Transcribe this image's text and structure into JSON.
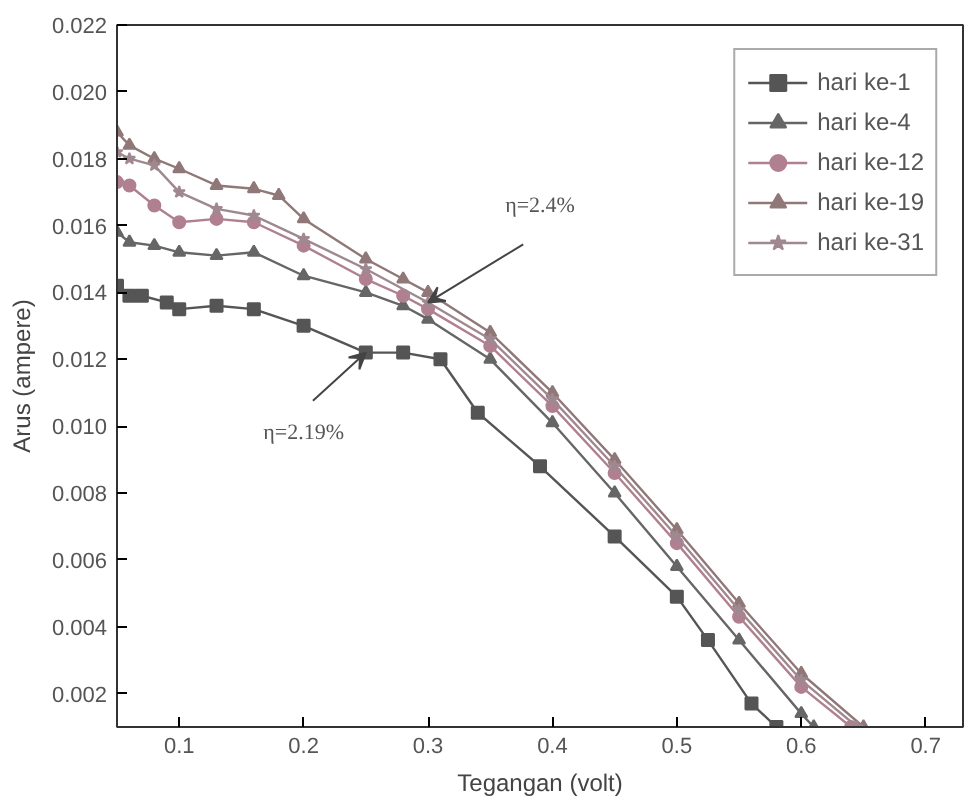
{
  "chart_data": {
    "type": "line",
    "xlabel": "Tegangan (volt)",
    "ylabel": "Arus (ampere)",
    "xlim": [
      0.05,
      0.73
    ],
    "ylim": [
      0.001,
      0.022
    ],
    "xticks": [
      {
        "value": 0.1,
        "label": "0.1"
      },
      {
        "value": 0.2,
        "label": "0.2"
      },
      {
        "value": 0.3,
        "label": "0.3"
      },
      {
        "value": 0.4,
        "label": "0.4"
      },
      {
        "value": 0.5,
        "label": "0.5"
      },
      {
        "value": 0.6,
        "label": "0.6"
      },
      {
        "value": 0.7,
        "label": "0.7"
      }
    ],
    "yticks": [
      {
        "value": 0.002,
        "label": "0.002"
      },
      {
        "value": 0.004,
        "label": "0.004"
      },
      {
        "value": 0.006,
        "label": "0.006"
      },
      {
        "value": 0.008,
        "label": "0.008"
      },
      {
        "value": 0.01,
        "label": "0.010"
      },
      {
        "value": 0.012,
        "label": "0.012"
      },
      {
        "value": 0.014,
        "label": "0.014"
      },
      {
        "value": 0.016,
        "label": "0.016"
      },
      {
        "value": 0.018,
        "label": "0.018"
      },
      {
        "value": 0.02,
        "label": "0.020"
      },
      {
        "value": 0.022,
        "label": "0.022"
      }
    ],
    "grid": false,
    "legend": "top right",
    "line_style": "solid",
    "series": [
      {
        "name": "hari ke-1",
        "color": "#555555",
        "marker": "square",
        "x": [
          0.05,
          0.06,
          0.07,
          0.09,
          0.1,
          0.13,
          0.16,
          0.2,
          0.25,
          0.28,
          0.31,
          0.34,
          0.39,
          0.45,
          0.5,
          0.525,
          0.56,
          0.58
        ],
        "values": [
          0.0142,
          0.0139,
          0.0139,
          0.0137,
          0.0135,
          0.0136,
          0.0135,
          0.013,
          0.0122,
          0.0122,
          0.012,
          0.0104,
          0.0088,
          0.0067,
          0.0049,
          0.0036,
          0.0017,
          0.001
        ]
      },
      {
        "name": "hari ke-4",
        "color": "#666666",
        "marker": "triangle",
        "x": [
          0.05,
          0.06,
          0.08,
          0.1,
          0.13,
          0.16,
          0.2,
          0.25,
          0.28,
          0.3,
          0.35,
          0.4,
          0.45,
          0.5,
          0.55,
          0.6,
          0.61
        ],
        "values": [
          0.0158,
          0.0155,
          0.0154,
          0.0152,
          0.0151,
          0.0152,
          0.0145,
          0.014,
          0.0136,
          0.0132,
          0.012,
          0.0101,
          0.008,
          0.0058,
          0.0036,
          0.0014,
          0.001
        ]
      },
      {
        "name": "hari ke-12",
        "color": "#b08090",
        "marker": "circle",
        "x": [
          0.05,
          0.06,
          0.08,
          0.1,
          0.13,
          0.16,
          0.2,
          0.25,
          0.28,
          0.3,
          0.35,
          0.4,
          0.45,
          0.5,
          0.55,
          0.6,
          0.64
        ],
        "values": [
          0.0173,
          0.0172,
          0.0166,
          0.0161,
          0.0162,
          0.0161,
          0.0154,
          0.0144,
          0.0139,
          0.0135,
          0.0124,
          0.0106,
          0.0086,
          0.0065,
          0.0043,
          0.0022,
          0.001
        ]
      },
      {
        "name": "hari ke-19",
        "color": "#907878",
        "marker": "triangle",
        "x": [
          0.05,
          0.06,
          0.08,
          0.1,
          0.13,
          0.16,
          0.18,
          0.2,
          0.25,
          0.28,
          0.3,
          0.35,
          0.4,
          0.45,
          0.5,
          0.55,
          0.6,
          0.65
        ],
        "values": [
          0.0188,
          0.0184,
          0.018,
          0.0177,
          0.0172,
          0.0171,
          0.0169,
          0.0162,
          0.015,
          0.0144,
          0.014,
          0.0128,
          0.011,
          0.009,
          0.0069,
          0.0047,
          0.0026,
          0.001
        ]
      },
      {
        "name": "hari ke-31",
        "color": "#a08890",
        "marker": "star",
        "x": [
          0.05,
          0.06,
          0.08,
          0.1,
          0.13,
          0.16,
          0.2,
          0.25,
          0.3,
          0.35,
          0.4,
          0.45,
          0.5,
          0.55,
          0.6,
          0.645
        ],
        "values": [
          0.0182,
          0.018,
          0.0178,
          0.017,
          0.0165,
          0.0163,
          0.0156,
          0.0147,
          0.0137,
          0.0126,
          0.0108,
          0.0088,
          0.0067,
          0.0045,
          0.0024,
          0.001
        ]
      }
    ],
    "annotations": [
      {
        "text": "η=2.19%",
        "x": 0.25,
        "y": 0.0122
      },
      {
        "text": "η=2.4%",
        "x": 0.3,
        "y": 0.0137
      }
    ]
  }
}
